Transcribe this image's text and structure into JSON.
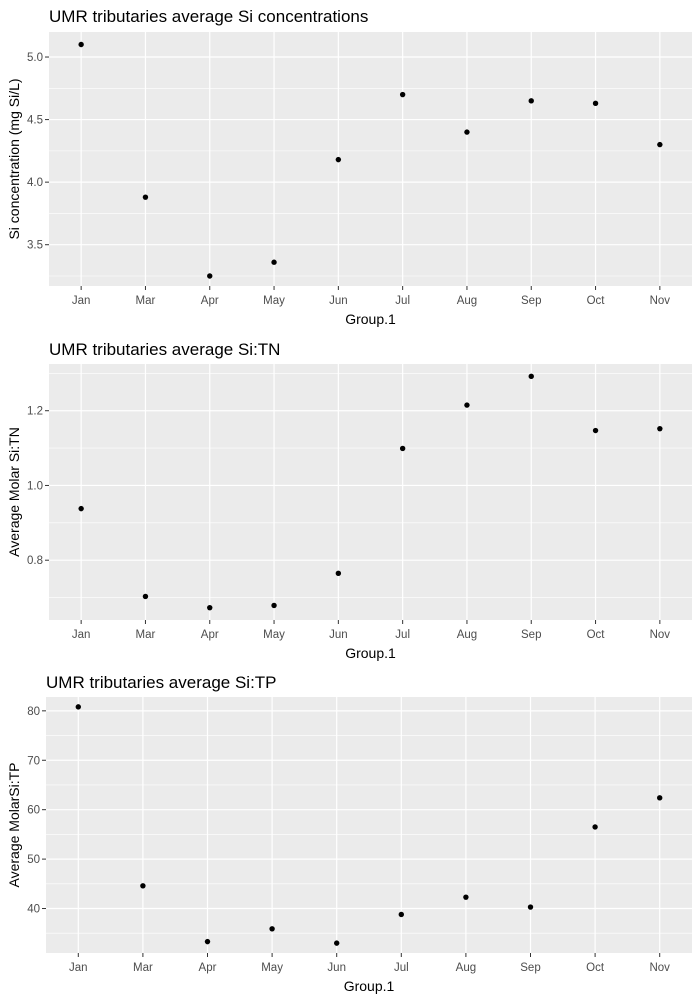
{
  "chart_data": [
    {
      "type": "scatter",
      "title": "UMR tributaries average Si concentrations",
      "xlabel": "Group.1",
      "ylabel": "Si concentration (mg Si/L)",
      "categories": [
        "Jan",
        "Mar",
        "Apr",
        "May",
        "Jun",
        "Jul",
        "Aug",
        "Sep",
        "Oct",
        "Nov"
      ],
      "values": [
        5.1,
        3.88,
        3.25,
        3.36,
        4.18,
        4.7,
        4.4,
        4.65,
        4.63,
        4.3
      ],
      "ylim": [
        3.17,
        5.2
      ],
      "yticks": [
        3.5,
        4.0,
        4.5,
        5.0
      ],
      "yticklabels": [
        "3.5",
        "4.0",
        "4.5",
        "5.0"
      ],
      "grid": true,
      "background": "#ebebeb",
      "point_color": "#000000"
    },
    {
      "type": "scatter",
      "title": "UMR tributaries average Si:TN",
      "xlabel": "Group.1",
      "ylabel": "Average Molar Si:TN",
      "categories": [
        "Jan",
        "Mar",
        "Apr",
        "May",
        "Jun",
        "Jul",
        "Aug",
        "Sep",
        "Oct",
        "Nov"
      ],
      "values": [
        0.938,
        0.703,
        0.673,
        0.679,
        0.765,
        1.099,
        1.215,
        1.292,
        1.147,
        1.152
      ],
      "ylim": [
        0.64,
        1.325
      ],
      "yticks": [
        0.8,
        1.0,
        1.2
      ],
      "yticklabels": [
        "0.8",
        "1.0",
        "1.2"
      ],
      "grid": true,
      "background": "#ebebeb",
      "point_color": "#000000"
    },
    {
      "type": "scatter",
      "title": "UMR tributaries average Si:TP",
      "xlabel": "Group.1",
      "ylabel": "Average MolarSi:TP",
      "categories": [
        "Jan",
        "Mar",
        "Apr",
        "May",
        "Jun",
        "Jul",
        "Aug",
        "Sep",
        "Oct",
        "Nov"
      ],
      "values": [
        80.8,
        44.6,
        33.3,
        35.9,
        33.0,
        38.8,
        42.3,
        40.3,
        56.5,
        62.4
      ],
      "ylim": [
        31.0,
        82.8
      ],
      "yticks": [
        40,
        50,
        60,
        70,
        80
      ],
      "yticklabels": [
        "40",
        "50",
        "60",
        "70",
        "80"
      ],
      "grid": true,
      "background": "#ebebeb",
      "point_color": "#000000"
    }
  ]
}
